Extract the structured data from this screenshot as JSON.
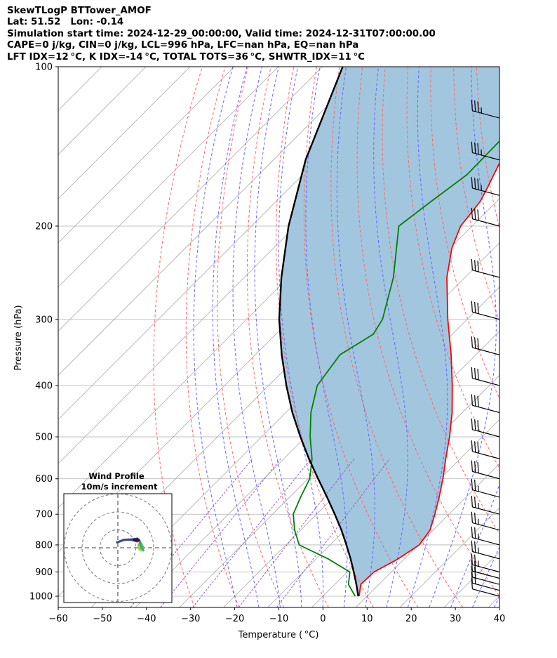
{
  "header": {
    "line1": "SkewTLogP BTTower_AMOF",
    "line2": "Lat: 51.52   Lon: -0.14",
    "line3": "Simulation start time: 2024-12-29_00:00:00, Valid time: 2024-12-31T07:00:00.00",
    "line4": "CAPE=0 j/kg, CIN=0 j/kg, LCL=996 hPa, LFC=nan hPa, EQ=nan hPa",
    "line5": "LFT IDX=12 °C, K IDX=-14 °C, TOTAL TOTS=36 °C, SHWTR_IDX=11 °C"
  },
  "colors": {
    "temperature": "#ff0000",
    "dewpoint": "#008000",
    "parcel": "#000000",
    "shade": "#a3c6df",
    "dry_adiabat": "#ff6666",
    "moist_adiabat": "#6666ff",
    "mixing_ratio": "#9a5bc8",
    "isotherm": "#aaaaaa",
    "grid": "#b0b0b0"
  },
  "chart_data": {
    "type": "line",
    "chart_kind": "skew-T log-P diagram",
    "xlabel": "Temperature ( °C)",
    "ylabel": "Pressure (hPa)",
    "xlim": [
      -60,
      40
    ],
    "ylim": [
      1050,
      100
    ],
    "y_scale": "log",
    "grid": true,
    "x_ticks": [
      "−60",
      "−50",
      "−40",
      "−30",
      "−20",
      "−10",
      "0",
      "10",
      "20",
      "30",
      "40"
    ],
    "y_ticks": [
      "1000",
      "900",
      "800",
      "700",
      "600",
      "500",
      "400",
      "300",
      "200",
      "100"
    ],
    "series": [
      {
        "key": "temperature",
        "points": [
          [
            1000,
            8.2
          ],
          [
            950,
            5.9
          ],
          [
            900,
            6.1
          ],
          [
            850,
            8.6
          ],
          [
            800,
            10.2
          ],
          [
            750,
            9.3
          ],
          [
            700,
            6.8
          ],
          [
            650,
            3.9
          ],
          [
            600,
            0.6
          ],
          [
            550,
            -3.3
          ],
          [
            500,
            -7.4
          ],
          [
            450,
            -12.3
          ],
          [
            400,
            -18.4
          ],
          [
            350,
            -25.6
          ],
          [
            300,
            -34.4
          ],
          [
            250,
            -44.1
          ],
          [
            220,
            -49.6
          ],
          [
            200,
            -52.6
          ],
          [
            180,
            -53.7
          ],
          [
            170,
            -55.1
          ],
          [
            150,
            -58.4
          ],
          [
            125,
            -62.7
          ],
          [
            110,
            -65.8
          ],
          [
            100,
            -68.9
          ]
        ]
      },
      {
        "key": "dewpoint",
        "points": [
          [
            1000,
            7.3
          ],
          [
            950,
            3.1
          ],
          [
            900,
            0.6
          ],
          [
            850,
            -7.3
          ],
          [
            800,
            -17.0
          ],
          [
            750,
            -21.4
          ],
          [
            700,
            -25.3
          ],
          [
            650,
            -27.5
          ],
          [
            600,
            -29.6
          ],
          [
            550,
            -33.6
          ],
          [
            500,
            -39.0
          ],
          [
            450,
            -44.3
          ],
          [
            400,
            -49.0
          ],
          [
            350,
            -50.8
          ],
          [
            320,
            -47.9
          ],
          [
            300,
            -49.2
          ],
          [
            250,
            -56.2
          ],
          [
            200,
            -66.6
          ],
          [
            180,
            -64.9
          ],
          [
            160,
            -62.8
          ],
          [
            130,
            -63.1
          ],
          [
            110,
            -60.2
          ],
          [
            100,
            -61.3
          ]
        ]
      },
      {
        "key": "parcel",
        "points": [
          [
            1000,
            8.0
          ],
          [
            950,
            4.9
          ],
          [
            900,
            1.5
          ],
          [
            850,
            -2.2
          ],
          [
            800,
            -6.3
          ],
          [
            750,
            -10.8
          ],
          [
            700,
            -15.9
          ],
          [
            650,
            -21.5
          ],
          [
            600,
            -27.7
          ],
          [
            550,
            -34.3
          ],
          [
            500,
            -41.2
          ],
          [
            450,
            -48.5
          ],
          [
            400,
            -56.0
          ],
          [
            350,
            -64.0
          ],
          [
            300,
            -72.6
          ],
          [
            250,
            -81.6
          ],
          [
            200,
            -91.6
          ],
          [
            150,
            -102.7
          ],
          [
            100,
            -115.4
          ]
        ]
      }
    ],
    "wind_barbs": {
      "pressures": [
        1000,
        975,
        950,
        925,
        900,
        850,
        800,
        750,
        700,
        650,
        600,
        550,
        500,
        450,
        400,
        350,
        300,
        250,
        200,
        175,
        150,
        125,
        100
      ],
      "direction_deg": 285,
      "speed_kt": [
        10,
        15,
        20,
        20,
        25,
        25,
        25,
        25,
        25,
        25,
        30,
        30,
        30,
        30,
        30,
        30,
        30,
        30,
        30,
        35,
        35,
        35,
        30
      ]
    },
    "inset": {
      "title_line1": "Wind Profile",
      "title_line2": "10m/s increment",
      "rings_ms": [
        10,
        20,
        30
      ],
      "hodograph_uv": [
        [
          11.0,
          3.2
        ],
        [
          12.8,
          2.2
        ],
        [
          13.5,
          0.2
        ],
        [
          13.0,
          -1.5
        ],
        [
          11.8,
          -0.5
        ],
        [
          11.6,
          1.6
        ],
        [
          12.8,
          2.8
        ],
        [
          14.0,
          0.5
        ],
        [
          14.2,
          -1.5
        ],
        [
          13.2,
          -0.2
        ],
        [
          12.4,
          2.6
        ],
        [
          12.2,
          3.8
        ],
        [
          10.5,
          3.6
        ],
        [
          8.5,
          4.2
        ],
        [
          6.0,
          4.6
        ],
        [
          3.5,
          4.4
        ],
        [
          1.0,
          3.5
        ],
        [
          -0.5,
          3.0
        ],
        [
          3.0,
          4.3
        ],
        [
          7.5,
          4.6
        ],
        [
          10.8,
          5.1
        ],
        [
          11.8,
          4.4
        ],
        [
          10.0,
          4.0
        ],
        [
          9.0,
          4.3
        ],
        [
          11.2,
          4.0
        ]
      ]
    }
  }
}
